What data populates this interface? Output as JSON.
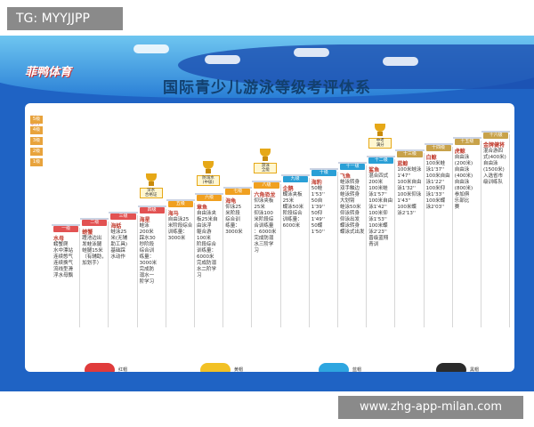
{
  "watermark_top": "TG: MYYJJPP",
  "watermark_bottom": "www.zhg-app-milan.com",
  "logo": "菲鸭体育",
  "title": "国际青少儿游泳等级考评体系",
  "axis": {
    "header": "等级\n系列",
    "levels": [
      "1级",
      "2级",
      "3级",
      "4级",
      "5级"
    ],
    "level_colors": [
      "#e8a33c",
      "#e8a33c",
      "#e8a33c",
      "#e8a33c",
      "#e8a33c"
    ]
  },
  "trophies": [
    {
      "label": "深水\n合格证"
    },
    {
      "label": "防溺水\n(中级)"
    },
    {
      "label": "游泳\n全能"
    },
    {
      "label": "中考\n满分"
    }
  ],
  "levels": [
    {
      "tab": "一级",
      "name": "水母",
      "body": "螃蟹爬\n水中漂站\n连续憋气\n连续换气\n流线型滑\n浮水母飘",
      "color": "#e25252"
    },
    {
      "tab": "二级",
      "name": "螃蟹",
      "body": "蹬池边出\n发蛙泳腿\n蛙腿15米\n（有辅助，\n加划手）",
      "color": "#e25252"
    },
    {
      "tab": "三级",
      "name": "海蛞",
      "body": "蛙泳25\n米(无辅\n助工具)\n基础踩\n水动作",
      "color": "#e25252"
    },
    {
      "tab": "四级",
      "name": "海星",
      "body": "蛙泳\n200米\n踩水30\n秒阶段\n综合训\n练量：\n3000米\n完成防\n溺水一\n阶学习",
      "color": "#e25252"
    },
    {
      "tab": "五级",
      "name": "海马",
      "body": "自由泳25\n米阶段综合\n训练量：\n3000米",
      "color": "#f0a020"
    },
    {
      "tab": "六级",
      "name": "章鱼",
      "body": "自由泳夹\n板25米自\n由泳浮\n躯合游\n100米\n阶段综合\n训练量：\n6000米\n完成防溺\n水二阶学\n习",
      "color": "#f0a020"
    },
    {
      "tab": "七级",
      "name": "海龟",
      "body": "仰泳25\n米阶段\n综合训\n练量：\n3000米",
      "color": "#f0a020"
    },
    {
      "tab": "八级",
      "name": "六角恐龙",
      "body": "仰泳夹板\n25米\n仰泳100\n米阶段综\n合训练量\n：6000米\n完成防溺\n水三阶学\n习",
      "color": "#f0a020"
    },
    {
      "tab": "九级",
      "name": "企鹅",
      "body": "蝶泳夹板\n25米\n蝶泳50米\n阶段综合\n训练量：\n6000米",
      "color": "#2a9fd6"
    },
    {
      "tab": "十级",
      "name": "海豹",
      "body": "50蛙\n1'53''\n50自\n1'39''\n50仰\n1'49''\n50蝶\n1'50''",
      "color": "#2a9fd6"
    },
    {
      "tab": "十一级",
      "name": "飞鱼",
      "body": "蛙泳转身\n双手触边\n蛙泳转身\n大划臂\n蛙泳50米\n仰泳转身\n仰泳出发\n蝶泳转身\n蝶泳式出发",
      "color": "#2a9fd6"
    },
    {
      "tab": "十二级",
      "name": "鲨鱼",
      "body": "混合四式\n200米\n100米蛙\n泳1'57''\n100米自由\n泳1'42''\n100米仰\n泳1'53''\n100米蝶\n泳2'23''\n晋级蓝翔\n青训",
      "color": "#2a9fd6"
    },
    {
      "tab": "十三级",
      "name": "蓝鲸",
      "body": "100米蛙泳\n1'47''\n100米自由\n泳1'32''\n100米仰泳\n1'43''\n100米蝶\n泳2'13''",
      "color": "#c8a24a"
    },
    {
      "tab": "十四级",
      "name": "白鲸",
      "body": "100米蛙\n泳1'37''\n100米自由\n泳1'22''\n100米仰\n泳1'33''\n100米蝶\n泳2'03''",
      "color": "#c8a24a"
    },
    {
      "tab": "十五级",
      "name": "虎鲸",
      "body": "自由泳\n(200米)\n自由泳\n(400米)\n自由泳\n(800米)\n参加俱\n乐部比\n赛",
      "color": "#c8a24a"
    },
    {
      "tab": "十六级",
      "name": "金牌健将",
      "body": "混合游四\n式(400米)\n自由泳\n(1500米)\n入选省市\n级训练队",
      "color": "#c8a24a"
    }
  ],
  "caps": [
    {
      "label": "红帽",
      "color": "#e03b3b"
    },
    {
      "label": "黄帽",
      "color": "#f2c125"
    },
    {
      "label": "蓝帽",
      "color": "#2ea6e0"
    },
    {
      "label": "黑帽",
      "color": "#2b2b2b"
    }
  ],
  "stages": {
    "side_label_top": "学习\n阶段",
    "side_label_bottom": "阶段",
    "items": [
      {
        "label": "初级",
        "color": "#e03b3b"
      },
      {
        "label": "中级",
        "color": "#f0a020"
      },
      {
        "label": "高级",
        "color": "#2a9fd6"
      },
      {
        "label": "专业级",
        "color": "#c8a24a"
      }
    ]
  }
}
